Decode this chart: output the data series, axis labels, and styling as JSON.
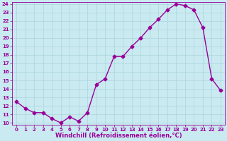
{
  "x": [
    0,
    1,
    2,
    3,
    4,
    5,
    6,
    7,
    8,
    9,
    10,
    11,
    12,
    13,
    14,
    15,
    16,
    17,
    18,
    19,
    20,
    21,
    22,
    23
  ],
  "y": [
    12.5,
    11.7,
    11.2,
    11.2,
    10.5,
    10.0,
    10.7,
    10.2,
    11.2,
    14.5,
    15.2,
    17.8,
    17.8,
    19.0,
    20.0,
    21.2,
    22.2,
    23.3,
    24.0,
    23.8,
    23.3,
    21.2,
    15.2,
    13.8
  ],
  "line_color": "#990099",
  "marker": "D",
  "marker_size": 2.5,
  "bg_color": "#c9eaf0",
  "grid_color": "#b0d8e0",
  "xlabel": "Windchill (Refroidissement éolien,°C)",
  "ylim": [
    10,
    24
  ],
  "xlim": [
    -0.5,
    23.5
  ],
  "yticks": [
    10,
    11,
    12,
    13,
    14,
    15,
    16,
    17,
    18,
    19,
    20,
    21,
    22,
    23,
    24
  ],
  "xticks": [
    0,
    1,
    2,
    3,
    4,
    5,
    6,
    7,
    8,
    9,
    10,
    11,
    12,
    13,
    14,
    15,
    16,
    17,
    18,
    19,
    20,
    21,
    22,
    23
  ],
  "tick_color": "#990099",
  "tick_fontsize": 5.0,
  "xlabel_fontsize": 6.0,
  "linewidth": 1.0,
  "figure_width": 3.2,
  "figure_height": 2.0,
  "dpi": 100
}
